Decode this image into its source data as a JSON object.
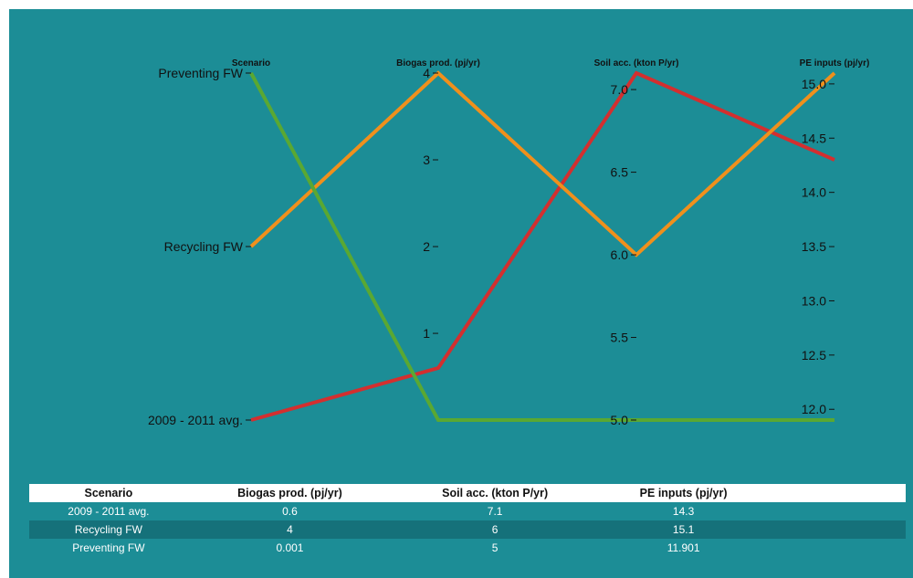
{
  "colors": {
    "background": "#1c8d96",
    "alt_row": "#15717a",
    "header_row": "#ffffff"
  },
  "chart_data": {
    "type": "parallel_coordinates",
    "axes": [
      {
        "name": "Scenario",
        "kind": "categorical",
        "categories": [
          "Preventing FW",
          "Recycling FW",
          "2009 - 2011 avg."
        ]
      },
      {
        "name": "Biogas prod. (pj/yr)",
        "kind": "linear",
        "domain": [
          0.001,
          4
        ],
        "ticks": [
          "1",
          "2",
          "3",
          "4"
        ]
      },
      {
        "name": "Soil acc. (kton P/yr)",
        "kind": "linear",
        "domain": [
          5,
          7.1
        ],
        "ticks": [
          "5.0",
          "5.5",
          "6.0",
          "6.5",
          "7.0"
        ]
      },
      {
        "name": "PE inputs (pj/yr)",
        "kind": "linear",
        "domain": [
          11.901,
          15.1
        ],
        "ticks": [
          "12.0",
          "12.5",
          "13.0",
          "13.5",
          "14.0",
          "14.5",
          "15.0"
        ]
      }
    ],
    "series": [
      {
        "scenario": "2009 - 2011 avg.",
        "values": [
          0.6,
          7.1,
          14.3
        ],
        "color": "#d32f2f"
      },
      {
        "scenario": "Recycling FW",
        "values": [
          4,
          6,
          15.1
        ],
        "color": "#f0901c"
      },
      {
        "scenario": "Preventing FW",
        "values": [
          0.001,
          5,
          11.901
        ],
        "color": "#5aa832"
      }
    ]
  },
  "table": {
    "headers": [
      "Scenario",
      "Biogas prod. (pj/yr)",
      "Soil acc. (kton P/yr)",
      "PE inputs (pj/yr)"
    ],
    "rows": [
      [
        "2009 - 2011 avg.",
        "0.6",
        "7.1",
        "14.3"
      ],
      [
        "Recycling FW",
        "4",
        "6",
        "15.1"
      ],
      [
        "Preventing FW",
        "0.001",
        "5",
        "11.901"
      ]
    ]
  }
}
